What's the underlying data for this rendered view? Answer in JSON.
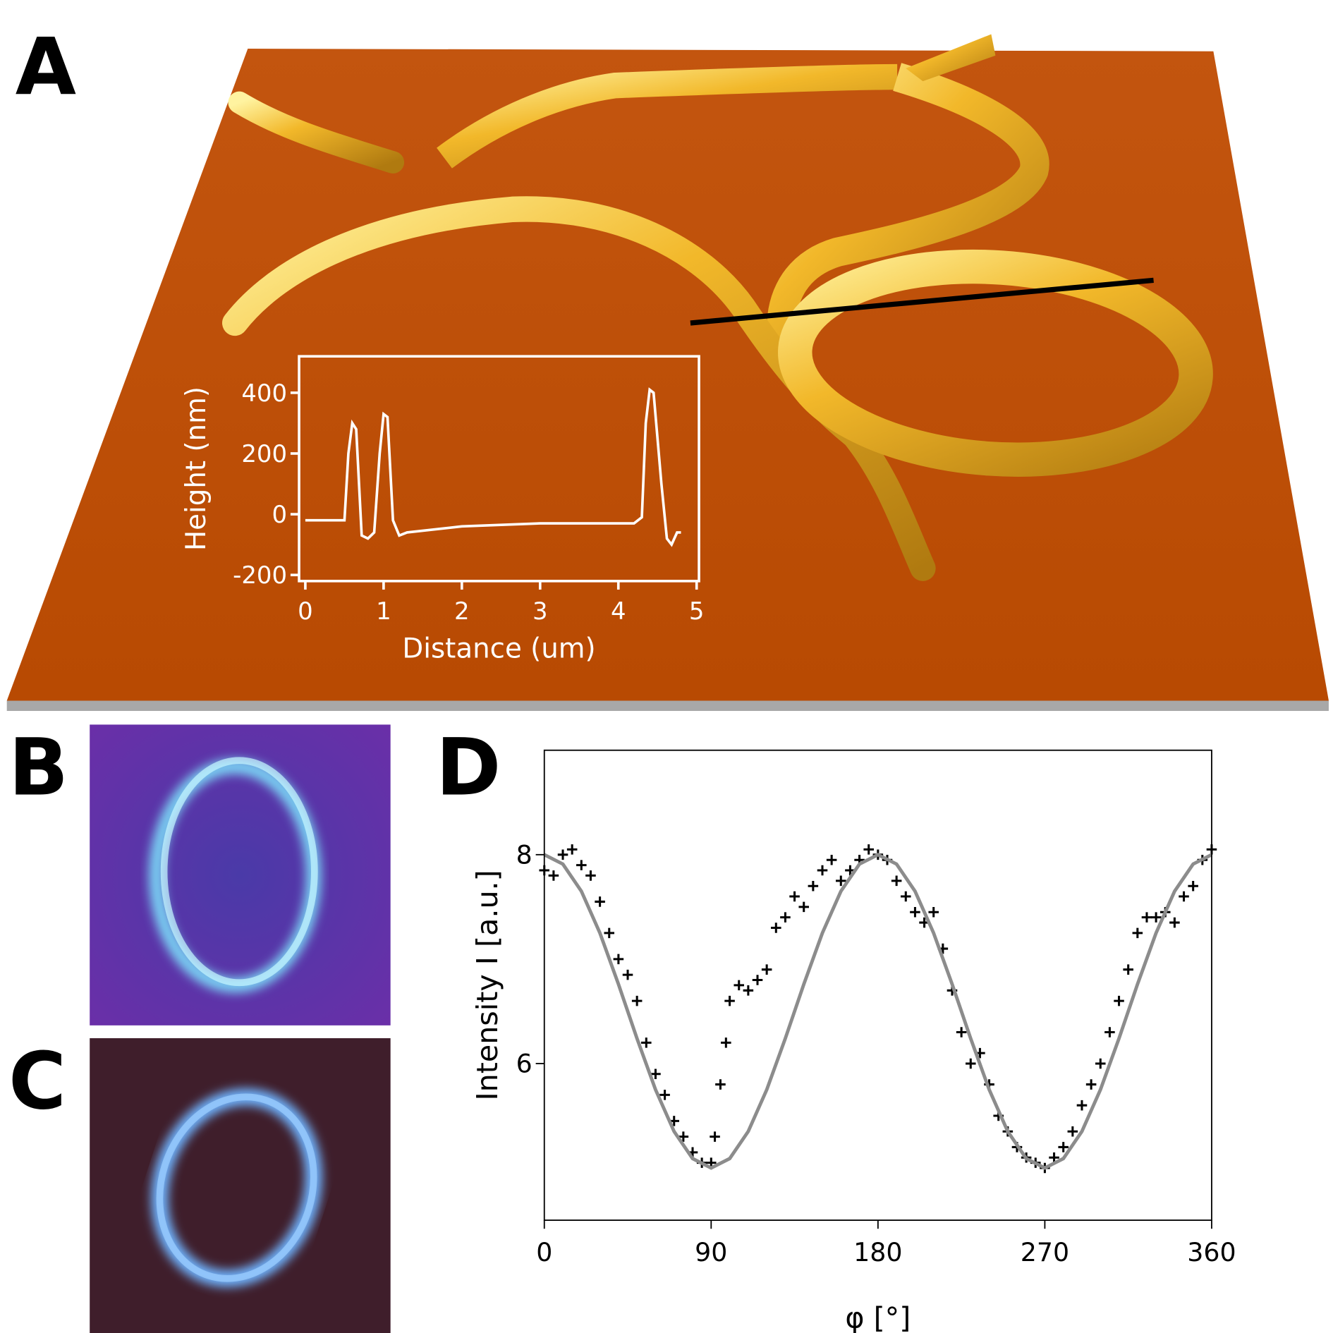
{
  "panels": [
    "A",
    "B",
    "C",
    "D"
  ],
  "chart_data": [
    {
      "type": "line",
      "xlabel": "Distance (um)",
      "ylabel": "Height (nm)",
      "xlim": [
        -0.08,
        5.03
      ],
      "ylim": [
        -220,
        520
      ],
      "xticks": [
        0,
        1,
        2,
        3,
        4,
        5
      ],
      "yticks": [
        -200,
        0,
        200,
        400
      ],
      "series": [
        {
          "color": "#ffffff",
          "x": [
            0.0,
            0.5,
            0.55,
            0.6,
            0.65,
            0.72,
            0.8,
            0.88,
            0.95,
            1.0,
            1.05,
            1.12,
            1.2,
            1.3,
            2.0,
            3.0,
            4.2,
            4.3,
            4.35,
            4.4,
            4.45,
            4.55,
            4.62,
            4.68,
            4.75,
            4.8
          ],
          "values": [
            -20,
            -20,
            200,
            300,
            280,
            -70,
            -80,
            -60,
            200,
            330,
            320,
            -20,
            -70,
            -60,
            -40,
            -30,
            -30,
            -10,
            300,
            410,
            400,
            100,
            -80,
            -100,
            -60,
            -60
          ]
        }
      ]
    },
    {
      "type": "scatter",
      "xlabel": "φ [°]",
      "ylabel": "Intensity I [a.u.]",
      "xlim": [
        0,
        360
      ],
      "ylim": [
        4.5,
        9.0
      ],
      "xticks": [
        0,
        90,
        180,
        270,
        360
      ],
      "yticks": [
        6,
        8
      ],
      "series": [
        {
          "mode": "markers",
          "color": "#000000",
          "x": [
            0,
            5,
            10,
            15,
            20,
            25,
            30,
            35,
            40,
            45,
            50,
            55,
            60,
            65,
            70,
            75,
            80,
            85,
            90,
            92,
            95,
            98,
            100,
            105,
            110,
            115,
            120,
            125,
            130,
            135,
            140,
            145,
            150,
            155,
            160,
            165,
            170,
            175,
            180,
            185,
            190,
            195,
            200,
            205,
            210,
            215,
            220,
            225,
            230,
            235,
            240,
            245,
            250,
            255,
            260,
            265,
            270,
            275,
            280,
            285,
            290,
            295,
            300,
            305,
            310,
            315,
            320,
            325,
            330,
            335,
            340,
            345,
            350,
            355,
            360
          ],
          "values": [
            7.85,
            7.8,
            8.0,
            8.05,
            7.9,
            7.8,
            7.55,
            7.25,
            7.0,
            6.85,
            6.6,
            6.2,
            5.9,
            5.7,
            5.45,
            5.3,
            5.15,
            5.05,
            5.05,
            5.3,
            5.8,
            6.2,
            6.6,
            6.75,
            6.7,
            6.8,
            6.9,
            7.3,
            7.4,
            7.6,
            7.5,
            7.7,
            7.85,
            7.95,
            7.75,
            7.85,
            7.95,
            8.05,
            8.0,
            7.95,
            7.75,
            7.6,
            7.45,
            7.35,
            7.45,
            7.1,
            6.7,
            6.3,
            6.0,
            6.1,
            5.8,
            5.5,
            5.35,
            5.2,
            5.1,
            5.05,
            5.0,
            5.1,
            5.2,
            5.35,
            5.6,
            5.8,
            6.0,
            6.3,
            6.6,
            6.9,
            7.25,
            7.4,
            7.4,
            7.45,
            7.35,
            7.6,
            7.7,
            7.95,
            8.05
          ]
        },
        {
          "mode": "line",
          "color": "#8c8c8c",
          "x": [
            0,
            10,
            20,
            30,
            40,
            50,
            60,
            70,
            80,
            90,
            100,
            110,
            120,
            130,
            140,
            150,
            160,
            170,
            180,
            190,
            200,
            210,
            220,
            230,
            240,
            250,
            260,
            270,
            280,
            290,
            300,
            310,
            320,
            330,
            340,
            350,
            360
          ],
          "values": [
            8.0,
            7.91,
            7.65,
            7.25,
            6.76,
            6.24,
            5.75,
            5.35,
            5.09,
            5.0,
            5.09,
            5.35,
            5.75,
            6.24,
            6.76,
            7.25,
            7.65,
            7.91,
            8.0,
            7.91,
            7.65,
            7.25,
            6.76,
            6.24,
            5.75,
            5.35,
            5.09,
            5.0,
            5.09,
            5.35,
            5.75,
            6.24,
            6.76,
            7.25,
            7.65,
            7.91,
            8.0
          ]
        }
      ]
    }
  ]
}
